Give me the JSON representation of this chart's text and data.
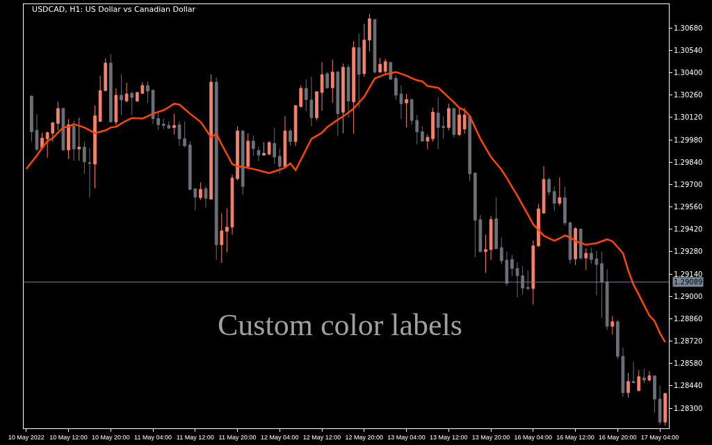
{
  "chart_data": {
    "type": "candlestick",
    "title": "USDCAD, H1: US Dollar vs Canadian Dollar",
    "categories": [
      "10 May 2022",
      null,
      null,
      null,
      null,
      null,
      null,
      null,
      "10 May 12:00",
      null,
      null,
      null,
      null,
      null,
      null,
      null,
      "10 May 20:00",
      null,
      null,
      null,
      null,
      null,
      null,
      null,
      "11 May 04:00",
      null,
      null,
      null,
      null,
      null,
      null,
      null,
      "11 May 12:00",
      null,
      null,
      null,
      null,
      null,
      null,
      null,
      "11 May 20:00",
      null,
      null,
      null,
      null,
      null,
      null,
      null,
      "12 May 04:00",
      null,
      null,
      null,
      null,
      null,
      null,
      null,
      "12 May 12:00",
      null,
      null,
      null,
      null,
      null,
      null,
      null,
      "12 May 20:00",
      null,
      null,
      null,
      null,
      null,
      null,
      null,
      "13 May 04:00",
      null,
      null,
      null,
      null,
      null,
      null,
      null,
      "13 May 12:00",
      null,
      null,
      null,
      null,
      null,
      null,
      null,
      "13 May 20:00",
      null,
      null,
      null,
      null,
      null,
      null,
      null,
      "16 May 04:00",
      null,
      null,
      null,
      null,
      null,
      null,
      null,
      "16 May 12:00",
      null,
      null,
      null,
      null,
      null,
      null,
      null,
      "16 May 20:00",
      null,
      null,
      null,
      null,
      null,
      null,
      null,
      "17 May 04:00",
      null
    ],
    "ohlc": [
      null,
      [
        1.30253,
        1.30258,
        1.29969,
        1.3003
      ],
      [
        1.30039,
        1.30141,
        1.29907,
        1.2992
      ],
      [
        1.2993,
        1.30025,
        1.2992,
        1.2999
      ],
      [
        1.29986,
        1.3003,
        1.29867,
        1.30025
      ],
      [
        1.30021,
        1.30092,
        1.29969,
        1.30086
      ],
      [
        1.30083,
        1.30218,
        1.30039,
        1.30176
      ],
      [
        1.30176,
        1.3018,
        1.29912,
        1.29916
      ],
      [
        1.29916,
        1.30109,
        1.2986,
        1.30074
      ],
      [
        1.30065,
        1.30101,
        1.29849,
        1.29923
      ],
      [
        1.29923,
        1.30118,
        1.29849,
        1.29934
      ],
      [
        1.29934,
        1.29969,
        1.29767,
        1.29842
      ],
      [
        1.29837,
        1.2993,
        1.29618,
        1.29832
      ],
      [
        1.29828,
        1.30194,
        1.29677,
        1.3013
      ],
      [
        1.30095,
        1.30381,
        1.30092,
        1.30288
      ],
      [
        1.30288,
        1.3049,
        1.30285,
        1.3046
      ],
      [
        1.3046,
        1.30517,
        1.30092,
        1.30092
      ],
      [
        1.30092,
        1.30302,
        1.30071,
        1.30259
      ],
      [
        1.30259,
        1.3039,
        1.30136,
        1.30229
      ],
      [
        1.30223,
        1.30338,
        1.30215,
        1.30267
      ],
      [
        1.30271,
        1.30281,
        1.30136,
        1.30245
      ],
      [
        1.30223,
        1.30281,
        1.30218,
        1.30276
      ],
      [
        1.30271,
        1.30341,
        1.30267,
        1.3032
      ],
      [
        1.3032,
        1.30346,
        1.30211,
        1.30285
      ],
      [
        1.3029,
        1.30294,
        1.30078,
        1.30113
      ],
      [
        1.30113,
        1.30153,
        1.30043,
        1.30074
      ],
      [
        1.30079,
        1.30113,
        1.30048,
        1.30069
      ],
      [
        1.30071,
        1.30095,
        1.30048,
        1.30053
      ],
      [
        1.30057,
        1.30144,
        1.30013,
        1.30069
      ],
      [
        1.30074,
        1.30095,
        1.29942,
        1.29986
      ],
      [
        1.29986,
        1.30095,
        1.29934,
        1.29942
      ],
      [
        1.29948,
        1.29972,
        1.29662,
        1.2967
      ],
      [
        1.29674,
        1.29674,
        1.29539,
        1.29621
      ],
      [
        1.29618,
        1.29714,
        1.29604,
        1.2967
      ],
      [
        1.29674,
        1.29688,
        1.29556,
        1.29614
      ],
      [
        1.29609,
        1.3039,
        1.29609,
        1.30341
      ],
      [
        1.30341,
        1.30369,
        1.29228,
        1.29323
      ],
      [
        1.29323,
        1.29521,
        1.2921,
        1.2941
      ],
      [
        1.29407,
        1.29551,
        1.29275,
        1.29433
      ],
      [
        1.29433,
        1.29762,
        1.29386,
        1.29741
      ],
      [
        1.29737,
        1.30065,
        1.29726,
        1.30036
      ],
      [
        1.30036,
        1.30039,
        1.29635,
        1.29688
      ],
      [
        1.29814,
        1.30021,
        1.29807,
        1.29972
      ],
      [
        1.29972,
        1.30007,
        1.29881,
        1.29925
      ],
      [
        1.29913,
        1.29937,
        1.29846,
        1.29884
      ],
      [
        1.29884,
        1.29965,
        1.29881,
        1.29895
      ],
      [
        1.2989,
        1.29972,
        1.29884,
        1.29963
      ],
      [
        1.29957,
        1.30057,
        1.29828,
        1.29872
      ],
      [
        1.29877,
        1.29925,
        1.29767,
        1.29814
      ],
      [
        1.29814,
        1.30127,
        1.29802,
        1.30036
      ],
      [
        1.30036,
        1.30048,
        1.29942,
        1.29969
      ],
      [
        1.29969,
        1.30197,
        1.29942,
        1.30194
      ],
      [
        1.30188,
        1.3032,
        1.30183,
        1.30302
      ],
      [
        1.30302,
        1.30359,
        1.30158,
        1.30232
      ],
      [
        1.30229,
        1.30376,
        1.30065,
        1.30118
      ],
      [
        1.30118,
        1.30285,
        1.30101,
        1.30281
      ],
      [
        1.30276,
        1.30466,
        1.30162,
        1.30387
      ],
      [
        1.30394,
        1.30404,
        1.30299,
        1.30306
      ],
      [
        1.30306,
        1.30482,
        1.30211,
        1.30404
      ],
      [
        1.30404,
        1.30411,
        1.30004,
        1.30144
      ],
      [
        1.30153,
        1.30457,
        1.30021,
        1.30434
      ],
      [
        1.30434,
        1.30452,
        1.30118,
        1.30223
      ],
      [
        1.30218,
        1.30597,
        1.30018,
        1.30557
      ],
      [
        1.30557,
        1.30645,
        1.3018,
        1.3039
      ],
      [
        1.30394,
        1.30706,
        1.30376,
        1.30604
      ],
      [
        1.30604,
        1.30768,
        1.30534,
        1.30738
      ],
      [
        1.30733,
        1.30733,
        1.30394,
        1.30404
      ],
      [
        1.30404,
        1.30492,
        1.30399,
        1.30452
      ],
      [
        1.30408,
        1.30487,
        1.3039,
        1.30469
      ],
      [
        1.30464,
        1.30466,
        1.30357,
        1.30359
      ],
      [
        1.30364,
        1.30381,
        1.30232,
        1.30259
      ],
      [
        1.30267,
        1.3032,
        1.30109,
        1.30206
      ],
      [
        1.30211,
        1.30267,
        1.30057,
        1.30232
      ],
      [
        1.30232,
        1.30236,
        1.30074,
        1.30101
      ],
      [
        1.30101,
        1.30136,
        1.29951,
        1.3003
      ],
      [
        1.3003,
        1.30065,
        1.29969,
        1.29972
      ],
      [
        1.29972,
        1.30013,
        1.2992,
        1.29995
      ],
      [
        1.29986,
        1.3018,
        1.29969,
        1.30153
      ],
      [
        1.30148,
        1.30246,
        1.2992,
        1.30057
      ],
      [
        1.30064,
        1.30127,
        1.29986,
        1.30057
      ],
      [
        1.30057,
        1.30206,
        1.30039,
        1.30176
      ],
      [
        1.30176,
        1.3018,
        1.29995,
        1.30013
      ],
      [
        1.30013,
        1.3018,
        1.30004,
        1.30136
      ],
      [
        1.30048,
        1.3018,
        1.30018,
        1.30136
      ],
      [
        1.30127,
        1.30136,
        1.29723,
        1.29767
      ],
      [
        1.29772,
        1.29776,
        1.29245,
        1.29477
      ],
      [
        1.2948,
        1.29509,
        1.29275,
        1.2928
      ],
      [
        1.2928,
        1.29386,
        1.29147,
        1.29293
      ],
      [
        1.29293,
        1.29504,
        1.29228,
        1.29481
      ],
      [
        1.29486,
        1.29618,
        1.29298,
        1.29298
      ],
      [
        1.29305,
        1.29368,
        1.292,
        1.29223
      ],
      [
        1.29226,
        1.2928,
        1.29064,
        1.29082
      ],
      [
        1.29231,
        1.29258,
        1.29126,
        1.29175
      ],
      [
        1.29175,
        1.29214,
        1.28994,
        1.29129
      ],
      [
        1.29129,
        1.29188,
        1.29012,
        1.29052
      ],
      [
        1.29056,
        1.29161,
        1.29038,
        1.29049
      ],
      [
        1.29049,
        1.29351,
        1.28947,
        1.29316
      ],
      [
        1.29316,
        1.29579,
        1.2931,
        1.29547
      ],
      [
        1.29521,
        1.29814,
        1.29521,
        1.29732
      ],
      [
        1.29732,
        1.29744,
        1.29632,
        1.29653
      ],
      [
        1.29656,
        1.29688,
        1.29533,
        1.29583
      ],
      [
        1.29583,
        1.29744,
        1.29568,
        1.29618
      ],
      [
        1.29618,
        1.29684,
        1.29442,
        1.2946
      ],
      [
        1.2946,
        1.29468,
        1.29205,
        1.29231
      ],
      [
        1.29235,
        1.29433,
        1.29196,
        1.29424
      ],
      [
        1.29421,
        1.29424,
        1.29228,
        1.2924
      ],
      [
        1.2924,
        1.29302,
        1.29165,
        1.2927
      ],
      [
        1.2927,
        1.29305,
        1.29205,
        1.29231
      ],
      [
        1.29235,
        1.29284,
        1.29007,
        1.292
      ],
      [
        1.29205,
        1.2928,
        1.28866,
        1.29091
      ],
      [
        1.29091,
        1.2917,
        1.28789,
        1.28813
      ],
      [
        1.28813,
        1.28877,
        1.28761,
        1.28841
      ],
      [
        1.28841,
        1.28854,
        1.28608,
        1.28625
      ],
      [
        1.28625,
        1.28678,
        1.28371,
        1.28397
      ],
      [
        1.28397,
        1.2852,
        1.28367,
        1.28467
      ],
      [
        1.28467,
        1.2859,
        1.28459,
        1.28459
      ],
      [
        1.2841,
        1.28538,
        1.28406,
        1.28497
      ],
      [
        1.2849,
        1.28547,
        1.28455,
        1.28476
      ],
      [
        1.28476,
        1.28532,
        1.28467,
        1.28503
      ],
      [
        1.28503,
        1.28503,
        1.28274,
        1.28357
      ],
      [
        1.28357,
        1.28441,
        1.28196,
        1.28213
      ],
      [
        1.28213,
        1.28397,
        1.2819,
        1.28392
      ]
    ],
    "series": [
      {
        "type": "line",
        "color": "#ff4500",
        "values": [
          1.29797,
          1.2984,
          1.29881,
          1.2993,
          1.29972,
          1.2999,
          1.30025,
          1.30057,
          1.30062,
          1.30078,
          1.30068,
          1.30057,
          1.3004,
          1.30021,
          1.3003,
          1.30039,
          1.30057,
          1.30062,
          1.30082,
          1.30101,
          1.30116,
          1.30115,
          1.30113,
          1.30128,
          1.30144,
          1.30155,
          1.30165,
          1.30185,
          1.30206,
          1.30201,
          1.30172,
          1.30144,
          1.30118,
          1.30092,
          1.30045,
          1.29995,
          1.30018,
          1.29951,
          1.2989,
          1.29828,
          1.29814,
          1.29811,
          1.29804,
          1.29797,
          1.29789,
          1.2978,
          1.29772,
          1.29782,
          1.29793,
          1.29807,
          1.29832,
          1.2979,
          1.29855,
          1.2992,
          1.29986,
          1.30005,
          1.30025,
          1.3006,
          1.30083,
          1.30106,
          1.30127,
          1.3015,
          1.30176,
          1.30213,
          1.3025,
          1.30307,
          1.30364,
          1.30377,
          1.3039,
          1.30397,
          1.30404,
          1.30393,
          1.30381,
          1.30366,
          1.30352,
          1.30346,
          1.30316,
          1.30311,
          1.30306,
          1.30276,
          1.30245,
          1.30215,
          1.3018,
          1.30165,
          1.30127,
          1.30056,
          1.29986,
          1.29929,
          1.29872,
          1.29832,
          1.29793,
          1.2974,
          1.29685,
          1.2963,
          1.29571,
          1.29512,
          1.29451,
          1.29415,
          1.2938,
          1.29363,
          1.29349,
          1.29363,
          1.29381,
          1.2937,
          1.29345,
          1.29334,
          1.29323,
          1.29328,
          1.29333,
          1.29345,
          1.29358,
          1.29345,
          1.29308,
          1.2927,
          1.29161,
          1.29073,
          1.2901,
          1.28945,
          1.2888,
          1.28845,
          1.2877,
          1.28713
        ]
      }
    ],
    "ylim": [
      1.28174,
      1.30829
    ],
    "yticks": [
      {
        "value": 1.283,
        "label": "1.28300"
      },
      {
        "value": 1.2844,
        "label": "1.28440"
      },
      {
        "value": 1.2858,
        "label": "1.28580"
      },
      {
        "value": 1.2872,
        "label": "1.28720"
      },
      {
        "value": 1.2886,
        "label": "1.28860"
      },
      {
        "value": 1.29,
        "label": "1.29000"
      },
      {
        "value": 1.2914,
        "label": "1.29140"
      },
      {
        "value": 1.2928,
        "label": "1.29280"
      },
      {
        "value": 1.2942,
        "label": "1.29420"
      },
      {
        "value": 1.2956,
        "label": "1.29560"
      },
      {
        "value": 1.297,
        "label": "1.29700"
      },
      {
        "value": 1.2984,
        "label": "1.29840"
      },
      {
        "value": 1.2998,
        "label": "1.29980"
      },
      {
        "value": 1.3012,
        "label": "1.30120"
      },
      {
        "value": 1.3026,
        "label": "1.30260"
      },
      {
        "value": 1.304,
        "label": "1.30400"
      },
      {
        "value": 1.3054,
        "label": "1.30540"
      },
      {
        "value": 1.3068,
        "label": "1.30680"
      }
    ],
    "ref_lines": [
      {
        "axis": "y",
        "value": 1.29089,
        "label": "1.29089",
        "color": "#778899"
      }
    ],
    "annotations": [
      "Custom color labels"
    ],
    "grid": false
  }
}
